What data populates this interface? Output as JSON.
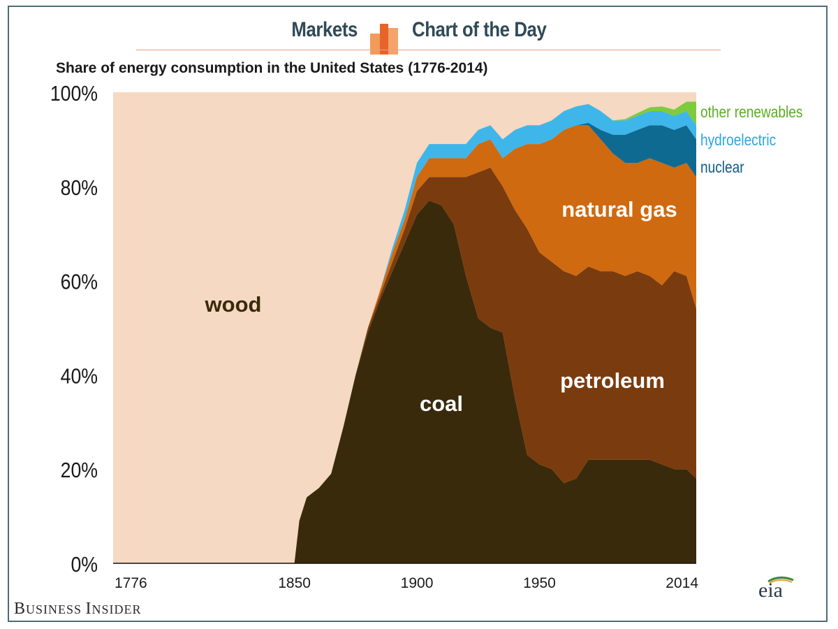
{
  "header": {
    "left_label": "Markets",
    "right_label": "Chart of the Day"
  },
  "footer": {
    "publisher_first": "B",
    "publisher_rest": "USINESS ",
    "publisher_second_first": "I",
    "publisher_second_rest": "NSIDER",
    "source_logo_text": "eia"
  },
  "colors": {
    "wood": "#f5d9c2",
    "coal": "#3a2a0c",
    "petroleum": "#7a3c0e",
    "natural_gas": "#cf6a10",
    "nuclear": "#0f6a92",
    "hydroelectric": "#3fb6ea",
    "other_renewables": "#7ecb3c",
    "header_text": "#2f4a57"
  },
  "chart_data": {
    "type": "area",
    "title": "Share of energy consumption  in the United States (1776-2014)",
    "xlabel": "",
    "ylabel": "",
    "xlim": [
      1776,
      2014
    ],
    "ylim": [
      0,
      100
    ],
    "x_ticks": [
      "1776",
      "1850",
      "1900",
      "1950",
      "2014"
    ],
    "y_ticks": [
      "0%",
      "20%",
      "40%",
      "60%",
      "80%",
      "100%"
    ],
    "stacked": true,
    "series": [
      {
        "name": "coal",
        "label": "coal",
        "color": "#3a2a0c",
        "x": [
          1849,
          1850,
          1852,
          1855,
          1860,
          1865,
          1870,
          1875,
          1880,
          1885,
          1890,
          1895,
          1900,
          1905,
          1910,
          1915,
          1920,
          1925,
          1930,
          1935,
          1940,
          1945,
          1950,
          1955,
          1960,
          1965,
          1970,
          1975,
          1980,
          1985,
          1990,
          1995,
          2000,
          2005,
          2010,
          2014
        ],
        "values": [
          0,
          0,
          9,
          14,
          16,
          19,
          29,
          40,
          49,
          56,
          62,
          68,
          74,
          77,
          76,
          72,
          61,
          52,
          50,
          49,
          35,
          23,
          21,
          20,
          17,
          18,
          22,
          22,
          22,
          22,
          22,
          22,
          21,
          20,
          20,
          18
        ]
      },
      {
        "name": "petroleum",
        "label": "petroleum",
        "color": "#7a3c0e",
        "x": [
          1849,
          1850,
          1852,
          1855,
          1860,
          1865,
          1870,
          1875,
          1880,
          1885,
          1890,
          1895,
          1900,
          1905,
          1910,
          1915,
          1920,
          1925,
          1930,
          1935,
          1940,
          1945,
          1950,
          1955,
          1960,
          1965,
          1970,
          1975,
          1980,
          1985,
          1990,
          1995,
          2000,
          2005,
          2010,
          2014
        ],
        "values": [
          0,
          0,
          0,
          0,
          0,
          0,
          0,
          0,
          1,
          1,
          2,
          3,
          5,
          5,
          6,
          10,
          21,
          31,
          34,
          31,
          40,
          48,
          45,
          44,
          45,
          43,
          41,
          40,
          40,
          39,
          40,
          39,
          38,
          42,
          41,
          36
        ]
      },
      {
        "name": "natural_gas",
        "label": "natural gas",
        "color": "#cf6a10",
        "x": [
          1849,
          1850,
          1852,
          1855,
          1860,
          1865,
          1870,
          1875,
          1880,
          1885,
          1890,
          1895,
          1900,
          1905,
          1910,
          1915,
          1920,
          1925,
          1930,
          1935,
          1940,
          1945,
          1950,
          1955,
          1960,
          1965,
          1970,
          1975,
          1980,
          1985,
          1990,
          1995,
          2000,
          2005,
          2010,
          2014
        ],
        "values": [
          0,
          0,
          0,
          0,
          0,
          0,
          0,
          0,
          0,
          1,
          2,
          2,
          3,
          4,
          4,
          4,
          4,
          6,
          6,
          6,
          13,
          18,
          23,
          26,
          30,
          32,
          30,
          28,
          25,
          24,
          23,
          25,
          26,
          22,
          24,
          28
        ]
      },
      {
        "name": "nuclear",
        "label": "nuclear",
        "color": "#0f6a92",
        "x": [
          1849,
          1955,
          1960,
          1965,
          1970,
          1975,
          1980,
          1985,
          1990,
          1995,
          2000,
          2005,
          2010,
          2014
        ],
        "values": [
          0,
          0,
          0,
          0,
          0.5,
          2,
          4,
          6,
          7,
          7,
          8,
          8,
          8,
          8
        ]
      },
      {
        "name": "hydroelectric",
        "label": "hydroelectric",
        "color": "#3fb6ea",
        "x": [
          1849,
          1885,
          1890,
          1895,
          1900,
          1905,
          1910,
          1915,
          1920,
          1925,
          1930,
          1935,
          1940,
          1945,
          1950,
          1955,
          1960,
          1965,
          1970,
          1975,
          1980,
          1985,
          1990,
          1995,
          2000,
          2005,
          2010,
          2014
        ],
        "values": [
          0,
          0,
          1,
          2,
          3,
          3,
          3,
          3,
          3,
          3,
          3,
          4,
          4,
          4,
          4,
          4,
          4,
          4,
          4,
          4,
          3,
          3,
          3,
          3,
          3,
          3,
          3,
          3
        ]
      },
      {
        "name": "other_renewables",
        "label": "other renewables",
        "color": "#7ecb3c",
        "x": [
          1849,
          1980,
          1985,
          1990,
          1995,
          2000,
          2005,
          2010,
          2014
        ],
        "values": [
          0,
          0,
          0.3,
          0.6,
          0.8,
          1,
          1.3,
          2,
          5
        ]
      },
      {
        "name": "wood",
        "label": "wood",
        "color": "#f5d9c2",
        "x": [
          1776,
          2014
        ],
        "values": [
          100,
          100
        ]
      }
    ]
  }
}
